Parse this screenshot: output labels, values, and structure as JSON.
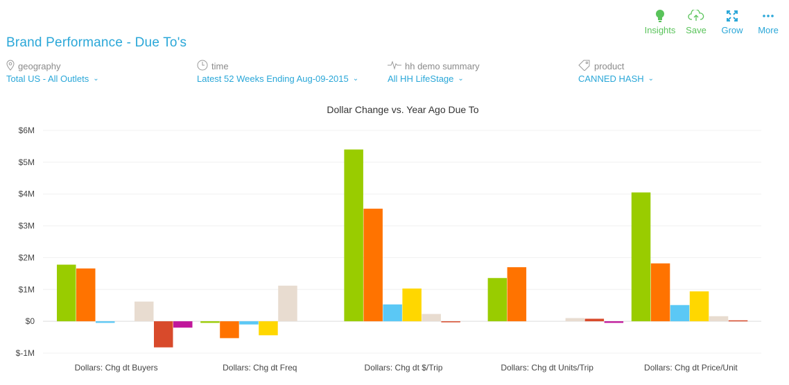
{
  "page": {
    "title": "Brand Performance - Due To's"
  },
  "toolbar": {
    "insights_label": "Insights",
    "save_label": "Save",
    "grow_label": "Grow",
    "more_label": "More"
  },
  "filters": {
    "geography": {
      "label": "geography",
      "value": "Total US - All Outlets"
    },
    "time": {
      "label": "time",
      "value": "Latest 52 Weeks Ending Aug-09-2015"
    },
    "demo": {
      "label": "hh demo summary",
      "value": "All HH LifeStage"
    },
    "product": {
      "label": "product",
      "value": "CANNED HASH"
    }
  },
  "colors": {
    "accent": "#2aa7d8",
    "toolbar_green": "#59c35a",
    "series": [
      "#99cc00",
      "#ff7300",
      "#5bc8f5",
      "#ffd700",
      "#e8dcd0",
      "#d84a2b",
      "#c0179b"
    ],
    "negative": "#d84a2b"
  },
  "chart_data": {
    "type": "bar",
    "title": "Dollar Change vs. Year Ago Due To",
    "ylim": [
      -1,
      6
    ],
    "yunit": "M",
    "yticks": [
      "$6M",
      "$5M",
      "$4M",
      "$3M",
      "$2M",
      "$1M",
      "$0",
      "$-1M"
    ],
    "grid": true,
    "categories": [
      "Dollars: Chg dt Buyers",
      "Dollars: Chg dt Freq",
      "Dollars: Chg dt $/Trip",
      "Dollars: Chg dt Units/Trip",
      "Dollars: Chg dt Price/Unit"
    ],
    "groups": [
      [
        1.78,
        1.66,
        -0.05,
        0,
        0.62,
        -0.82,
        -0.2
      ],
      [
        -0.05,
        -0.53,
        -0.1,
        -0.44,
        1.12,
        0,
        0
      ],
      [
        5.4,
        3.54,
        0.53,
        1.03,
        0.23,
        -0.03,
        0
      ],
      [
        1.36,
        1.7,
        0,
        0,
        0.1,
        0.08,
        -0.05
      ],
      [
        4.05,
        1.82,
        0.51,
        0.94,
        0.16,
        0.03,
        0
      ]
    ]
  }
}
